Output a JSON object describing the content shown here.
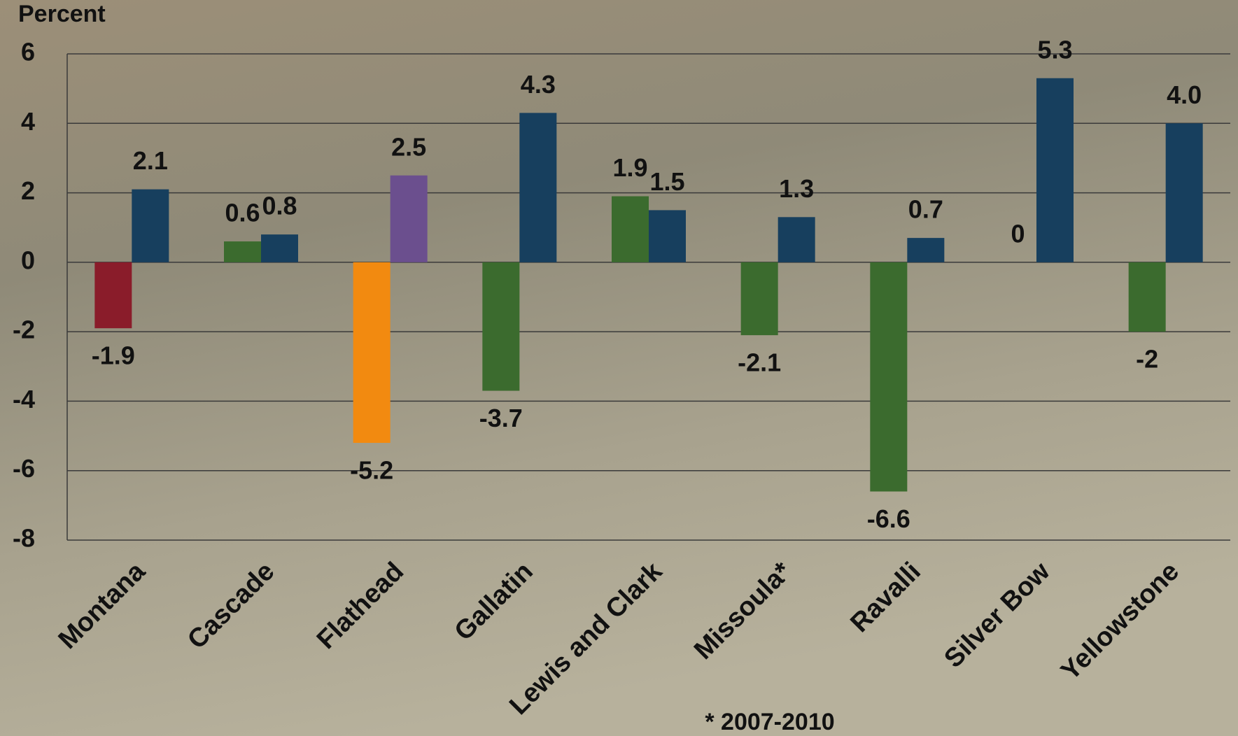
{
  "chart_data": {
    "type": "bar",
    "y_label": "Percent",
    "footnote": "* 2007-2010",
    "categories": [
      "Montana",
      "Cascade",
      "Flathead",
      "Gallatin",
      "Lewis and Clark",
      "Missoula*",
      "Ravalli",
      "Silver Bow",
      "Yellowstone"
    ],
    "series": [
      {
        "values": [
          -1.9,
          0.6,
          -5.2,
          -3.7,
          1.9,
          -2.1,
          -6.6,
          0,
          -2
        ],
        "colors": [
          "#8a1c2a",
          "#3b6b2e",
          "#f28a10",
          "#3b6b2e",
          "#3b6b2e",
          "#3b6b2e",
          "#3b6b2e",
          "#3b6b2e",
          "#3b6b2e"
        ]
      },
      {
        "values": [
          2.1,
          0.8,
          2.5,
          4.3,
          1.5,
          1.3,
          0.7,
          5.3,
          4
        ],
        "value_labels": [
          "2.1",
          "0.8",
          "2.5",
          "4.3",
          "1.5",
          "1.3",
          "0.7",
          "5.3",
          "4.0"
        ],
        "colors": [
          "#173f5e",
          "#173f5e",
          "#6b4f8e",
          "#173f5e",
          "#173f5e",
          "#173f5e",
          "#173f5e",
          "#173f5e",
          "#173f5e"
        ]
      }
    ],
    "ylim": [
      -8,
      6
    ],
    "yticks": [
      -8,
      -6,
      -4,
      -2,
      0,
      2,
      4,
      6
    ],
    "grid": true
  }
}
